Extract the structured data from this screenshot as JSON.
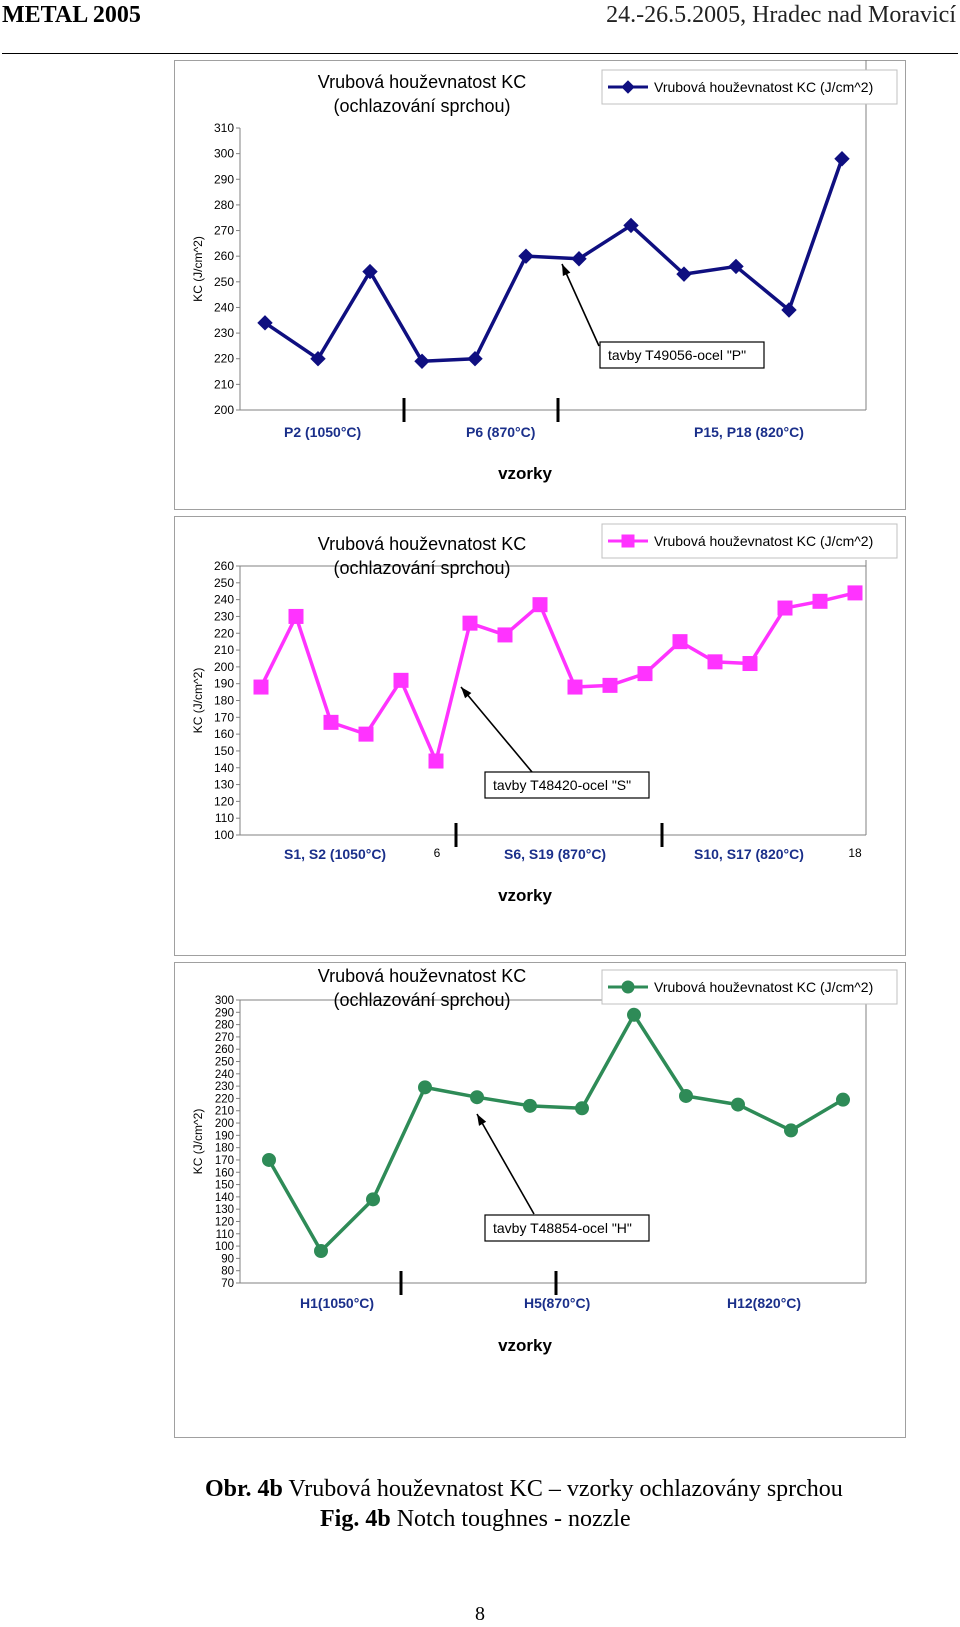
{
  "header": {
    "left": "METAL 2005",
    "right": "24.-26.5.2005, Hradec nad Moravicí"
  },
  "chart_data": [
    {
      "type": "line",
      "title": "Vrubová houževnatost KC (ochlazování sprchou)",
      "ylabel": "KC (J/cm^2)",
      "xlabel": "vzorky",
      "ylim": [
        200,
        310
      ],
      "yticks": [
        200,
        210,
        220,
        230,
        240,
        250,
        260,
        270,
        280,
        290,
        300,
        310
      ],
      "legend": "top-right",
      "grid": false,
      "color": "#0f0f80",
      "marker": "diamond",
      "series": [
        {
          "name": "Vrubová houževnatost KC (J/cm^2)",
          "values": [
            234,
            220,
            254,
            219,
            220,
            260,
            259,
            272,
            253,
            256,
            239,
            298
          ]
        }
      ],
      "group_labels": [
        "P2 (1050°C)",
        "P6 (870°C)",
        "P15, P18 (820°C)"
      ],
      "extra_ticks": [],
      "annotation": "tavby T49056-ocel \"P\""
    },
    {
      "type": "line",
      "title": "Vrubová houževnatost KC (ochlazování sprchou)",
      "ylabel": "KC (J/cm^2)",
      "xlabel": "vzorky",
      "ylim": [
        100,
        260
      ],
      "yticks": [
        100,
        110,
        120,
        130,
        140,
        150,
        160,
        170,
        180,
        190,
        200,
        210,
        220,
        230,
        240,
        250,
        260
      ],
      "legend": "top-right",
      "grid": false,
      "color": "#ff33ff",
      "marker": "square",
      "series": [
        {
          "name": "Vrubová houževnatost KC (J/cm^2)",
          "values": [
            188,
            230,
            167,
            160,
            192,
            144,
            226,
            219,
            237,
            188,
            189,
            196,
            215,
            203,
            202,
            235,
            239,
            244
          ]
        }
      ],
      "group_labels": [
        "S1, S2 (1050°C)",
        "S6, S19 (870°C)",
        "S10, S17 (820°C)"
      ],
      "extra_ticks": [
        "6",
        "18"
      ],
      "annotation": "tavby T48420-ocel \"S\""
    },
    {
      "type": "line",
      "title": "Vrubová houževnatost KC (ochlazování sprchou)",
      "ylabel": "KC (J/cm^2)",
      "xlabel": "vzorky",
      "ylim": [
        70,
        300
      ],
      "yticks": [
        70,
        80,
        90,
        100,
        110,
        120,
        130,
        140,
        150,
        160,
        170,
        180,
        190,
        200,
        210,
        220,
        230,
        240,
        250,
        260,
        270,
        280,
        290,
        300
      ],
      "legend": "top-right",
      "grid": false,
      "color": "#2e8b57",
      "marker": "circle",
      "series": [
        {
          "name": "Vrubová houževnatost KC (J/cm^2)",
          "values": [
            170,
            96,
            138,
            229,
            221,
            214,
            212,
            288,
            222,
            215,
            194,
            219
          ]
        }
      ],
      "group_labels": [
        "H1(1050°C)",
        "H5(870°C)",
        "H12(820°C)"
      ],
      "extra_ticks": [],
      "annotation": "tavby T48854-ocel \"H\""
    }
  ],
  "caption": {
    "line1_bold": "Obr. 4b",
    "line1_text": "Vrubová houževnatost KC – vzorky ochlazovány sprchou",
    "line2_bold": "Fig. 4b",
    "line2_text": "Notch toughnes - nozzle"
  },
  "page_number": "8"
}
